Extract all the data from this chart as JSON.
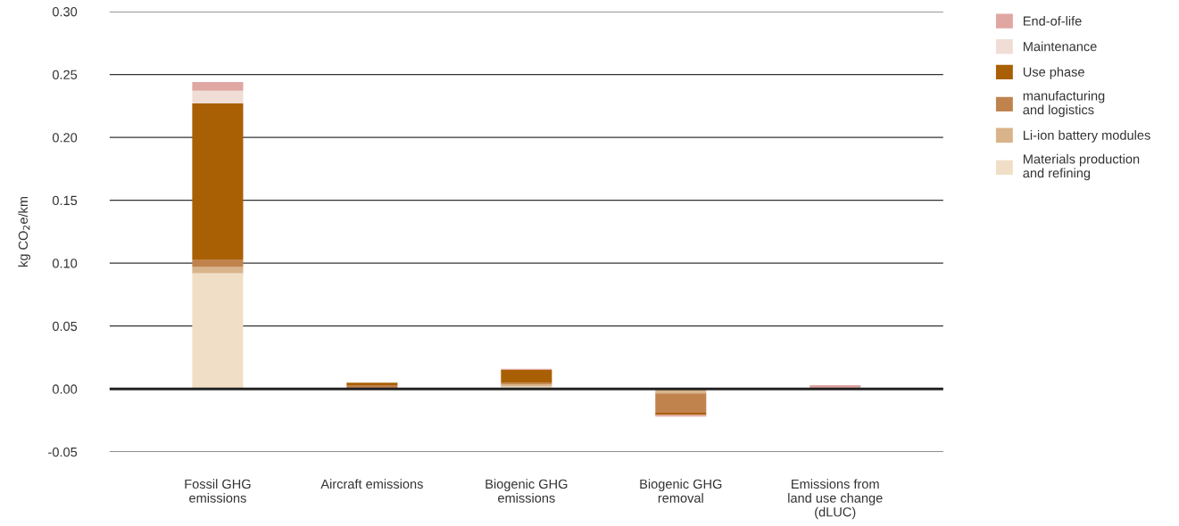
{
  "chart_data": {
    "type": "bar",
    "stacked": true,
    "ylabel": "kg CO$_{2}$e/km",
    "categories": [
      "Fossil GHG\nemissions",
      "Aircraft emissions",
      "Biogenic GHG\nemissions",
      "Biogenic GHG\nremoval",
      "Emissions from\nland use change\n(dLUC)"
    ],
    "series": [
      {
        "name": "Materials production\nand refining",
        "color": "#f0dfc6",
        "values": [
          0.092,
          0,
          0.002,
          0,
          0
        ]
      },
      {
        "name": "Li-ion battery modules",
        "color": "#d9b48a",
        "values": [
          0.005,
          0,
          0.0015,
          -0.0035,
          0
        ]
      },
      {
        "name": "manufacturing\nand logistics",
        "color": "#c0834e",
        "values": [
          0.006,
          0.003,
          0.0015,
          -0.0155,
          0
        ]
      },
      {
        "name": "Use phase",
        "color": "#a95f03",
        "values": [
          0.124,
          0.002,
          0.01,
          -0.0015,
          0
        ]
      },
      {
        "name": "Maintenance",
        "color": "#f0ddd6",
        "values": [
          0.01,
          0,
          null,
          null,
          0
        ]
      },
      {
        "name": "End-of-life",
        "color": "#e0a6a2",
        "values": [
          0.007,
          0,
          0.001,
          -0.0015,
          0.003
        ]
      }
    ],
    "ylim": [
      -0.05,
      0.3
    ],
    "yticks": [
      {
        "value": -0.05,
        "label": "-0.05"
      },
      {
        "value": 0,
        "label": "0.00"
      },
      {
        "value": 0.05,
        "label": "0.05"
      },
      {
        "value": 0.1,
        "label": "0.10"
      },
      {
        "value": 0.15,
        "label": "0.15"
      },
      {
        "value": 0.2,
        "label": "0.20"
      },
      {
        "value": 0.25,
        "label": "0.25"
      },
      {
        "value": 0.3,
        "label": "0.30"
      }
    ],
    "grid": "y",
    "legend": "top right",
    "ref_lines": [
      {
        "axis": "y",
        "value": 0,
        "color": "#222222"
      }
    ]
  }
}
